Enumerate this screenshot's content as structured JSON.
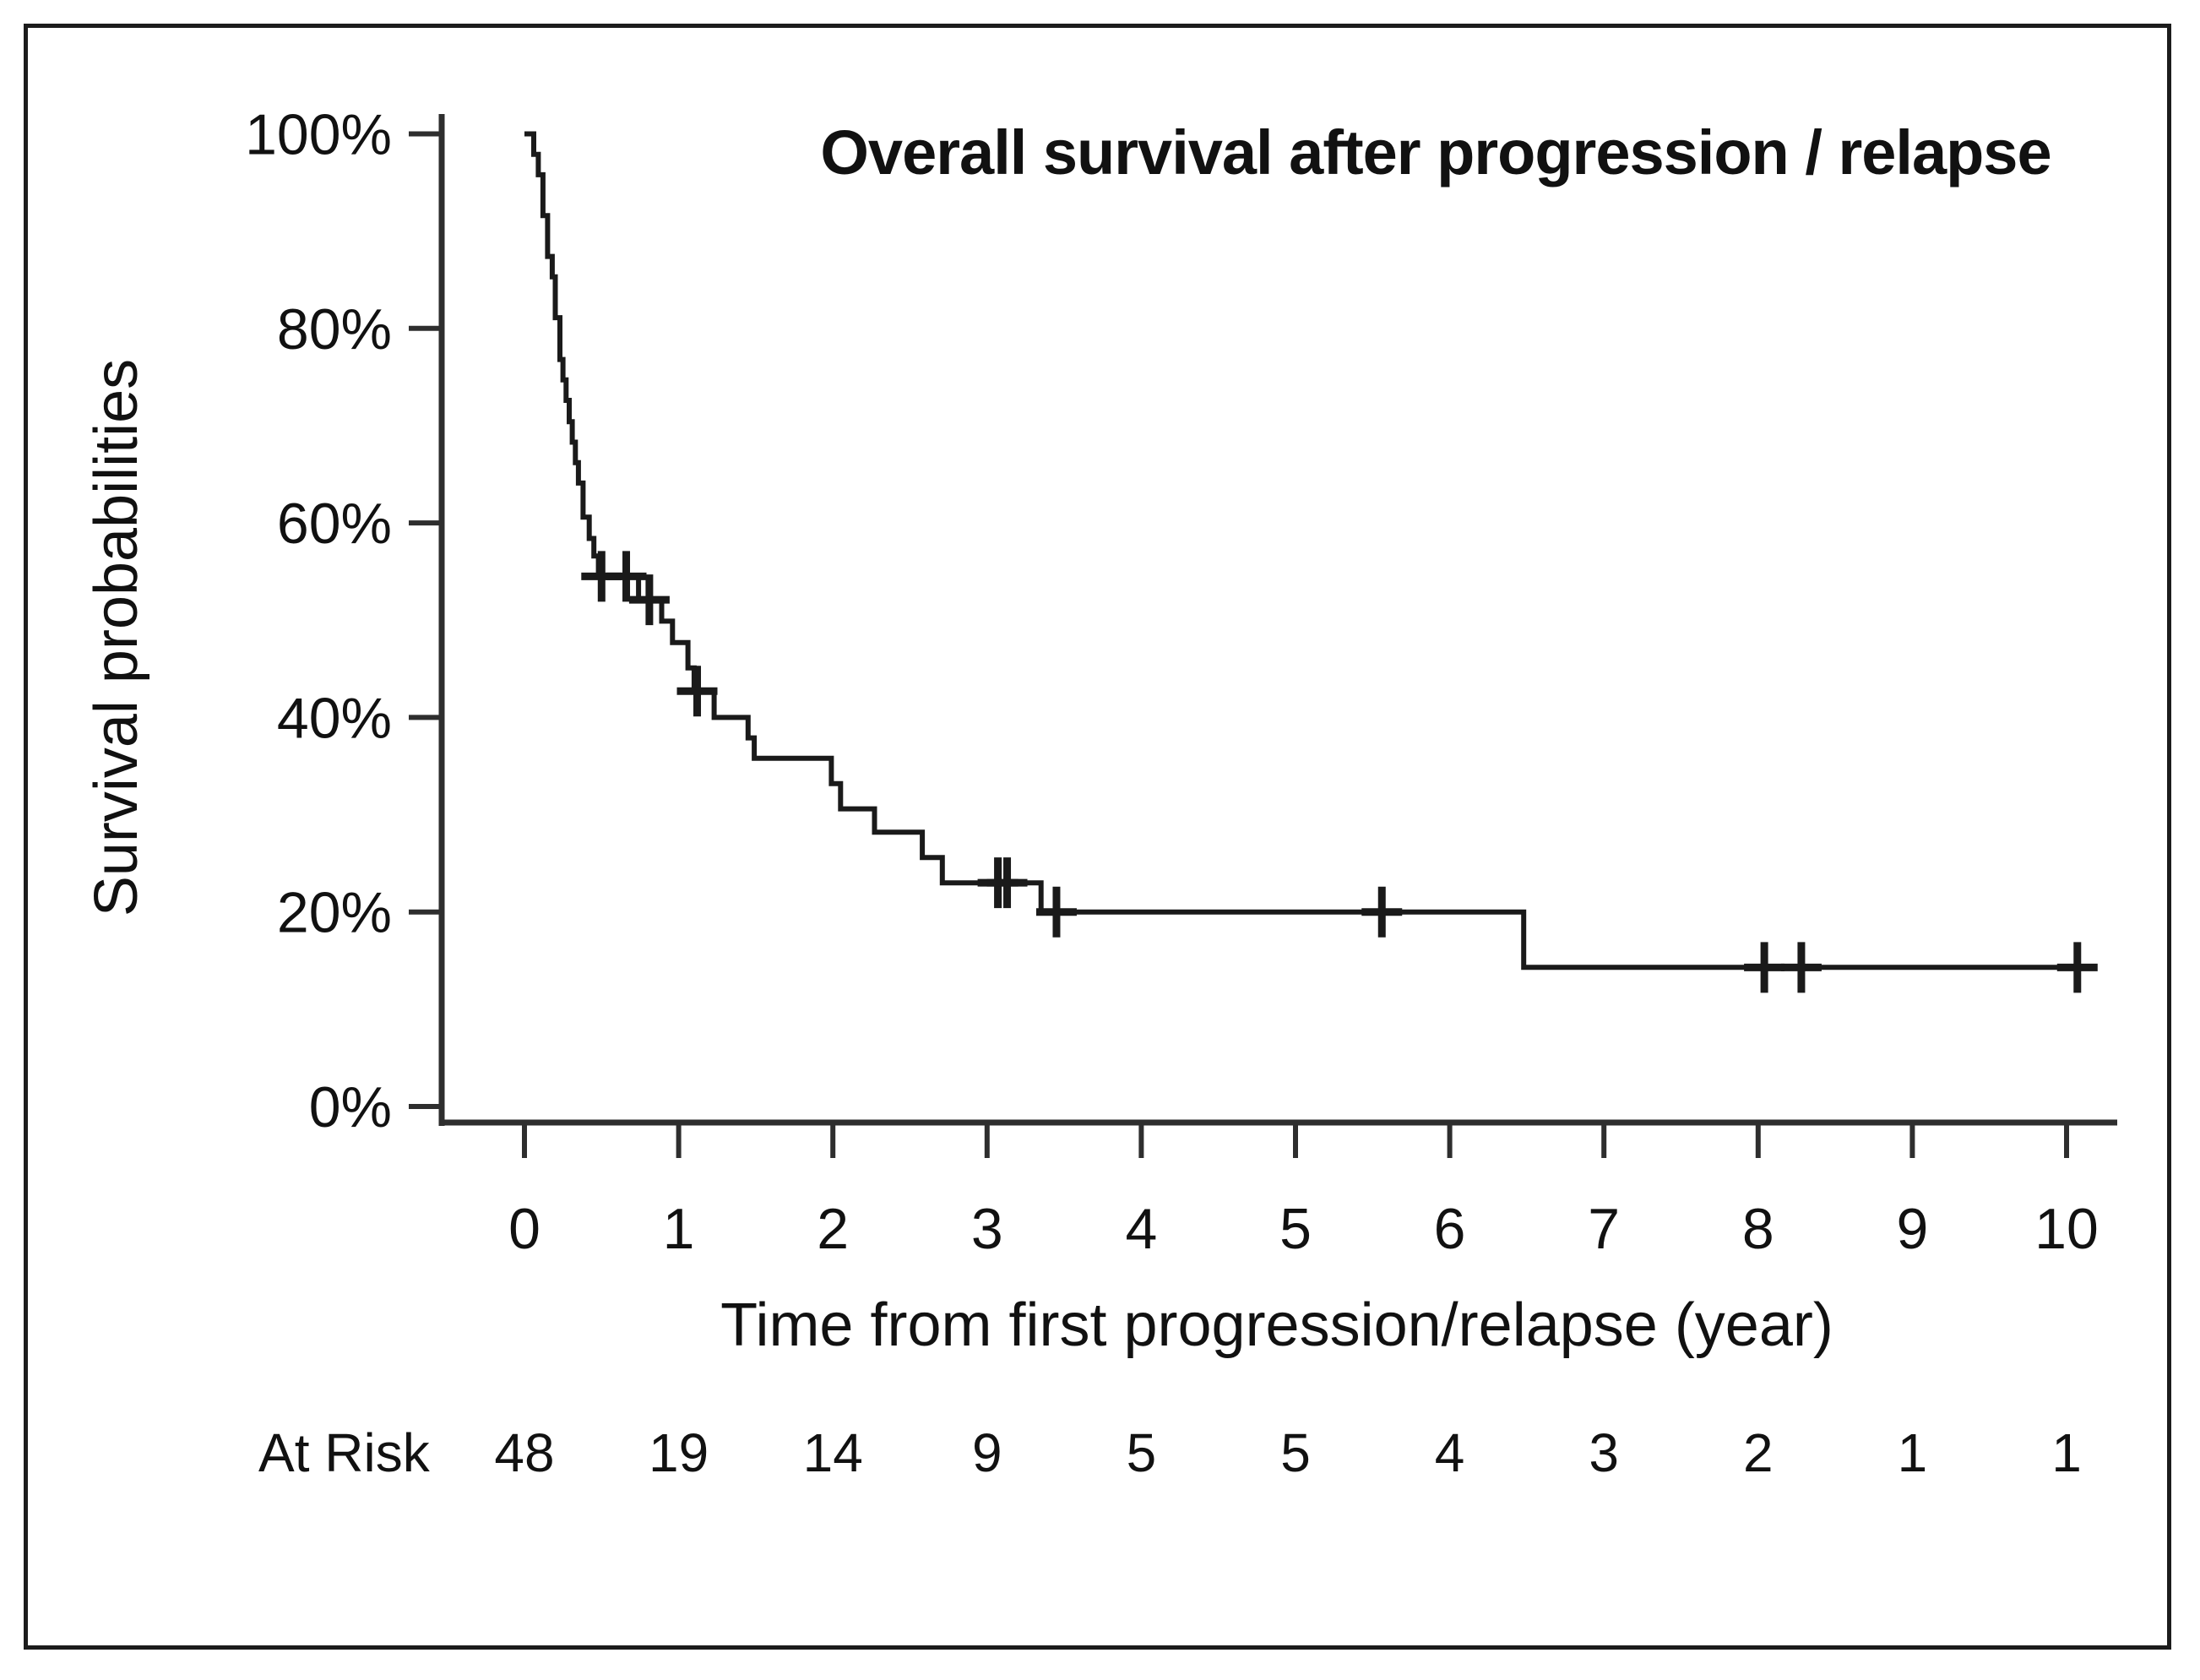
{
  "figure": {
    "title": "Overall survival after progression / relapse",
    "x_axis_label": "Time from first progression/relapse (year)",
    "y_axis_label": "Survival probabilities",
    "at_risk_label": "At Risk"
  },
  "colors": {
    "curve": "#1a1a1a",
    "axis": "#2e2e2e",
    "text": "#111111",
    "background": "#ffffff"
  },
  "chart_data": {
    "type": "line",
    "step_style": "kaplan-meier",
    "title": "Overall survival after progression / relapse",
    "xlabel": "Time from first progression/relapse (year)",
    "ylabel": "Survival probabilities",
    "xlim": [
      0,
      10.35
    ],
    "ylim": [
      0,
      100
    ],
    "grid": false,
    "legend_position": "none",
    "x_ticks": {
      "values": [
        0,
        1,
        2,
        3,
        4,
        5,
        6,
        7,
        8,
        9,
        10
      ],
      "labels": [
        "0",
        "1",
        "2",
        "3",
        "4",
        "5",
        "6",
        "7",
        "8",
        "9",
        "10"
      ]
    },
    "y_ticks": {
      "values": [
        0,
        20,
        40,
        60,
        80,
        100
      ],
      "labels": [
        "0%",
        "20%",
        "40%",
        "60%",
        "80%",
        "100%"
      ]
    },
    "survival_steps": [
      [
        0.0,
        100.0
      ],
      [
        0.06,
        97.9
      ],
      [
        0.09,
        95.8
      ],
      [
        0.12,
        91.6
      ],
      [
        0.15,
        87.4
      ],
      [
        0.18,
        85.3
      ],
      [
        0.2,
        81.1
      ],
      [
        0.23,
        76.8
      ],
      [
        0.25,
        74.7
      ],
      [
        0.27,
        72.6
      ],
      [
        0.29,
        70.4
      ],
      [
        0.31,
        68.3
      ],
      [
        0.33,
        66.2
      ],
      [
        0.35,
        64.1
      ],
      [
        0.38,
        60.6
      ],
      [
        0.42,
        58.4
      ],
      [
        0.45,
        56.6
      ],
      [
        0.48,
        54.5
      ],
      [
        0.74,
        52.1
      ],
      [
        0.89,
        49.9
      ],
      [
        0.96,
        47.7
      ],
      [
        1.06,
        45.1
      ],
      [
        1.1,
        42.7
      ],
      [
        1.23,
        40.0
      ],
      [
        1.45,
        37.9
      ],
      [
        1.49,
        35.8
      ],
      [
        1.99,
        33.2
      ],
      [
        2.05,
        30.6
      ],
      [
        2.27,
        28.2
      ],
      [
        2.58,
        25.6
      ],
      [
        2.71,
        23.0
      ],
      [
        3.35,
        20.0
      ],
      [
        6.48,
        14.3
      ]
    ],
    "censor_marks": [
      [
        0.5,
        54.5
      ],
      [
        0.66,
        54.5
      ],
      [
        0.81,
        52.1
      ],
      [
        1.12,
        42.7
      ],
      [
        3.07,
        23.0
      ],
      [
        3.13,
        23.0
      ],
      [
        3.45,
        20.0
      ],
      [
        5.56,
        20.0
      ],
      [
        8.04,
        14.3
      ],
      [
        8.28,
        14.3
      ],
      [
        10.07,
        14.3
      ]
    ],
    "curve_end_time": 10.12,
    "at_risk": {
      "label": "At Risk",
      "times": [
        0,
        1,
        2,
        3,
        4,
        5,
        6,
        7,
        8,
        9,
        10
      ],
      "values": [
        48,
        19,
        14,
        9,
        5,
        5,
        4,
        3,
        2,
        1,
        1
      ]
    }
  }
}
